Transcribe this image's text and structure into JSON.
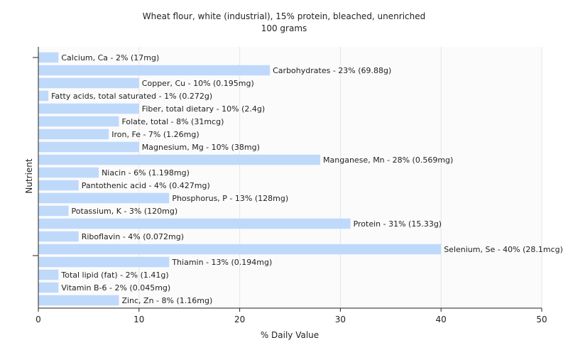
{
  "chart_data": {
    "type": "bar",
    "orientation": "horizontal",
    "title": "Wheat flour, white (industrial), 15% protein, bleached, unenriched",
    "subtitle": "100 grams",
    "xlabel": "% Daily Value",
    "ylabel": "Nutrient",
    "xlim": [
      0,
      50
    ],
    "xticks": [
      0,
      10,
      20,
      30,
      40,
      50
    ],
    "grid": true,
    "bar_color": "#bfd9fb",
    "grid_color": "#e6e6e6",
    "categories": [
      "Calcium, Ca",
      "Carbohydrates",
      "Copper, Cu",
      "Fatty acids, total saturated",
      "Fiber, total dietary",
      "Folate, total",
      "Iron, Fe",
      "Magnesium, Mg",
      "Manganese, Mn",
      "Niacin",
      "Pantothenic acid",
      "Phosphorus, P",
      "Potassium, K",
      "Protein",
      "Riboflavin",
      "Selenium, Se",
      "Thiamin",
      "Total lipid (fat)",
      "Vitamin B-6",
      "Zinc, Zn"
    ],
    "values": [
      2,
      23,
      10,
      1,
      10,
      8,
      7,
      10,
      28,
      6,
      4,
      13,
      3,
      31,
      4,
      40,
      13,
      2,
      2,
      8
    ],
    "labels": [
      "Calcium, Ca - 2% (17mg)",
      "Carbohydrates - 23% (69.88g)",
      "Copper, Cu - 10% (0.195mg)",
      "Fatty acids, total saturated - 1% (0.272g)",
      "Fiber, total dietary - 10% (2.4g)",
      "Folate, total - 8% (31mcg)",
      "Iron, Fe - 7% (1.26mg)",
      "Magnesium, Mg - 10% (38mg)",
      "Manganese, Mn - 28% (0.569mg)",
      "Niacin - 6% (1.198mg)",
      "Pantothenic acid - 4% (0.427mg)",
      "Phosphorus, P - 13% (128mg)",
      "Potassium, K - 3% (120mg)",
      "Protein - 31% (15.33g)",
      "Riboflavin - 4% (0.072mg)",
      "Selenium, Se - 40% (28.1mcg)",
      "Thiamin - 13% (0.194mg)",
      "Total lipid (fat) - 2% (1.41g)",
      "Vitamin B-6 - 2% (0.045mg)",
      "Zinc, Zn - 8% (1.16mg)"
    ]
  }
}
